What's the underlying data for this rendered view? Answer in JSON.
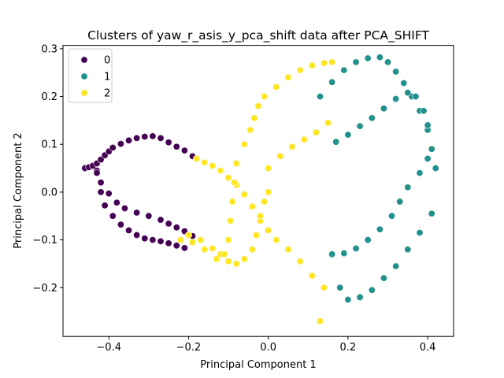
{
  "chart_data": {
    "type": "scatter",
    "title": "Clusters of yaw_r_asis_y_pca_shift data after PCA_SHIFT",
    "xlabel": "Principal Component 1",
    "ylabel": "Principal Component 2",
    "xlim": [
      -0.515,
      0.465
    ],
    "ylim": [
      -0.302,
      0.307
    ],
    "xticks": [
      -0.4,
      -0.2,
      0.0,
      0.2,
      0.4
    ],
    "xtick_labels": [
      "−0.4",
      "−0.2",
      "0.0",
      "0.2",
      "0.4"
    ],
    "yticks": [
      -0.2,
      -0.1,
      0.0,
      0.1,
      0.2,
      0.3
    ],
    "ytick_labels": [
      "−0.2",
      "−0.1",
      "0.0",
      "0.1",
      "0.2",
      "0.3"
    ],
    "grid": false,
    "legend_position": "upper-left",
    "series": [
      {
        "name": "0",
        "color": "#440154",
        "x": [
          -0.46,
          -0.45,
          -0.44,
          -0.43,
          -0.42,
          -0.41,
          -0.4,
          -0.39,
          -0.37,
          -0.35,
          -0.33,
          -0.31,
          -0.29,
          -0.27,
          -0.25,
          -0.23,
          -0.21,
          -0.19,
          -0.43,
          -0.42,
          -0.4,
          -0.38,
          -0.36,
          -0.33,
          -0.3,
          -0.27,
          -0.25,
          -0.23,
          -0.21,
          -0.19,
          -0.43,
          -0.42,
          -0.41,
          -0.39,
          -0.37,
          -0.35,
          -0.33,
          -0.31,
          -0.29,
          -0.27,
          -0.25,
          -0.23,
          -0.21
        ],
        "y": [
          0.05,
          0.052,
          0.055,
          0.06,
          0.068,
          0.077,
          0.085,
          0.093,
          0.101,
          0.108,
          0.113,
          0.116,
          0.117,
          0.113,
          0.104,
          0.095,
          0.087,
          0.075,
          0.045,
          0.02,
          -0.003,
          -0.022,
          -0.034,
          -0.043,
          -0.05,
          -0.058,
          -0.066,
          -0.074,
          -0.082,
          -0.092,
          0.04,
          0.0,
          -0.028,
          -0.05,
          -0.068,
          -0.08,
          -0.09,
          -0.097,
          -0.1,
          -0.103,
          -0.107,
          -0.112,
          -0.117
        ]
      },
      {
        "name": "1",
        "color": "#21918c",
        "x": [
          0.13,
          0.16,
          0.19,
          0.22,
          0.25,
          0.28,
          0.3,
          0.32,
          0.34,
          0.36,
          0.38,
          0.4,
          0.41,
          0.42,
          0.17,
          0.2,
          0.23,
          0.26,
          0.29,
          0.32,
          0.35,
          0.37,
          0.39,
          0.4,
          0.16,
          0.19,
          0.22,
          0.25,
          0.28,
          0.31,
          0.33,
          0.35,
          0.38,
          0.4,
          0.18,
          0.2,
          0.23,
          0.26,
          0.29,
          0.32,
          0.35,
          0.38,
          0.41
        ],
        "y": [
          0.2,
          0.23,
          0.255,
          0.272,
          0.28,
          0.282,
          0.272,
          0.252,
          0.228,
          0.2,
          0.17,
          0.13,
          0.09,
          0.05,
          0.105,
          0.12,
          0.138,
          0.155,
          0.175,
          0.195,
          0.208,
          0.2,
          0.17,
          0.14,
          -0.13,
          -0.128,
          -0.118,
          -0.1,
          -0.078,
          -0.05,
          -0.02,
          0.01,
          0.04,
          0.07,
          -0.2,
          -0.225,
          -0.22,
          -0.205,
          -0.18,
          -0.155,
          -0.12,
          -0.085,
          -0.045
        ]
      },
      {
        "name": "2",
        "color": "#fde725",
        "x": [
          -0.18,
          -0.16,
          -0.14,
          -0.12,
          -0.1,
          -0.08,
          -0.06,
          -0.04,
          -0.02,
          0.0,
          0.02,
          0.05,
          0.08,
          0.11,
          0.14,
          -0.2,
          -0.17,
          -0.14,
          -0.12,
          -0.1,
          -0.08,
          -0.06,
          -0.04,
          -0.03,
          -0.02,
          -0.01,
          0.0,
          -0.22,
          -0.19,
          -0.16,
          -0.13,
          -0.11,
          -0.1,
          -0.095,
          -0.09,
          -0.085,
          -0.08,
          -0.06,
          -0.045,
          -0.035,
          -0.025,
          -0.01,
          0.02,
          0.05,
          0.08,
          0.11,
          0.14,
          0.16,
          0.0,
          0.03,
          0.06,
          0.09,
          0.12,
          0.15,
          0.13
        ],
        "y": [
          0.07,
          0.062,
          0.055,
          0.045,
          0.03,
          0.015,
          -0.005,
          -0.03,
          -0.06,
          -0.08,
          -0.1,
          -0.12,
          -0.145,
          -0.175,
          -0.2,
          -0.09,
          -0.1,
          -0.118,
          -0.13,
          -0.145,
          -0.15,
          -0.14,
          -0.12,
          -0.09,
          -0.05,
          -0.02,
          0.0,
          -0.1,
          -0.105,
          -0.12,
          -0.14,
          -0.13,
          -0.1,
          -0.06,
          -0.02,
          0.02,
          0.06,
          0.1,
          0.13,
          0.155,
          0.18,
          0.2,
          0.22,
          0.24,
          0.255,
          0.265,
          0.27,
          0.272,
          0.05,
          0.075,
          0.095,
          0.11,
          0.125,
          0.145,
          -0.27
        ]
      }
    ]
  }
}
